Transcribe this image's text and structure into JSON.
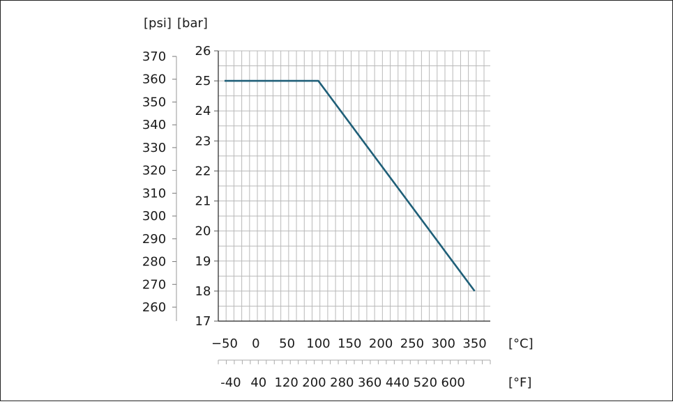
{
  "chart_data": {
    "type": "line",
    "title": "",
    "units": {
      "psi": "[psi]",
      "bar": "[bar]",
      "celsius": "[°C]",
      "fahrenheit": "[°F]"
    },
    "x_celsius_ticks": [
      "−50",
      "0",
      "50",
      "100",
      "150",
      "200",
      "250",
      "300",
      "350"
    ],
    "x_fahrenheit_ticks": [
      "-40",
      "40",
      "120",
      "200",
      "280",
      "360",
      "440",
      "520",
      "600"
    ],
    "y_bar_ticks": [
      "26",
      "25",
      "24",
      "23",
      "22",
      "21",
      "20",
      "19",
      "18",
      "17"
    ],
    "y_psi_ticks": [
      "370",
      "360",
      "350",
      "340",
      "330",
      "320",
      "310",
      "300",
      "290",
      "280",
      "270",
      "260"
    ],
    "xlim_celsius": [
      -60,
      375
    ],
    "ylim_bar": [
      17,
      26
    ],
    "grid": true,
    "series": [
      {
        "color": "#1f5f78",
        "points": [
          {
            "x": -50,
            "y": 25
          },
          {
            "x": 100,
            "y": 25
          },
          {
            "x": 350,
            "y": 18
          }
        ]
      }
    ]
  }
}
